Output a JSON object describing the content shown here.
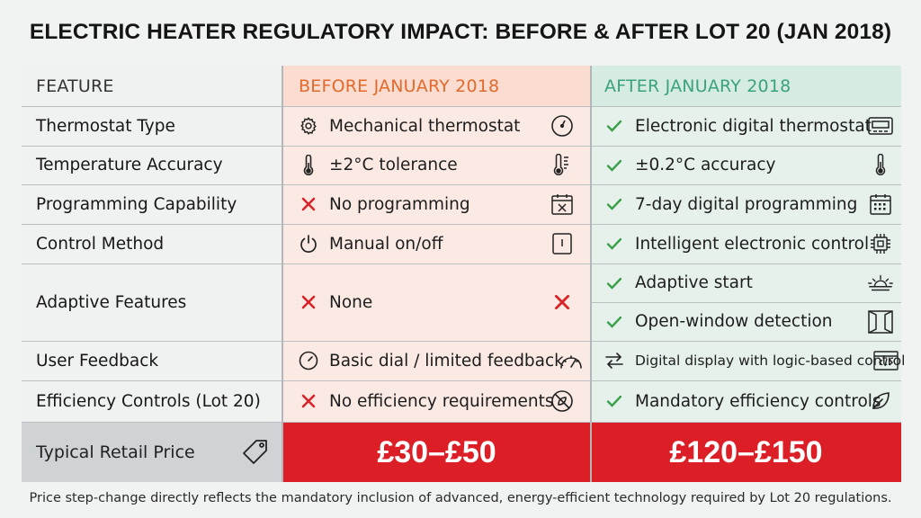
{
  "title": "ELECTRIC HEATER REGULATORY IMPACT: BEFORE & AFTER LOT 20 (JAN 2018)",
  "headers": {
    "feature": "FEATURE",
    "before": "BEFORE JANUARY 2018",
    "after": "AFTER JANUARY 2018"
  },
  "rows": [
    {
      "feature": "Thermostat Type",
      "before": {
        "text": "Mechanical thermostat",
        "lead_icon": "gear-icon",
        "trail_icon": "dial-icon"
      },
      "after": [
        {
          "text": "Electronic digital thermostat",
          "lead_icon": "check-icon",
          "trail_icon": "digital-display-icon"
        }
      ]
    },
    {
      "feature": "Temperature Accuracy",
      "before": {
        "text": "±2°C tolerance",
        "lead_icon": "thermometer-icon",
        "trail_icon": "thermometer-scale-icon"
      },
      "after": [
        {
          "text": "±0.2°C accuracy",
          "lead_icon": "check-icon",
          "trail_icon": "thermometer-icon"
        }
      ]
    },
    {
      "feature": "Programming Capability",
      "before": {
        "text": "No programming",
        "lead_icon": "x-icon",
        "trail_icon": "calendar-x-icon"
      },
      "after": [
        {
          "text": "7-day digital programming",
          "lead_icon": "check-icon",
          "trail_icon": "calendar-grid-icon"
        }
      ]
    },
    {
      "feature": "Control Method",
      "before": {
        "text": "Manual on/off",
        "lead_icon": "power-icon",
        "trail_icon": "switch-icon"
      },
      "after": [
        {
          "text": "Intelligent electronic control",
          "lead_icon": "check-icon",
          "trail_icon": "chip-icon"
        }
      ]
    },
    {
      "feature": "Adaptive Features",
      "before": {
        "text": "None",
        "lead_icon": "x-icon",
        "trail_icon": "x-icon"
      },
      "after": [
        {
          "text": "Adaptive start",
          "lead_icon": "check-icon",
          "trail_icon": "sunrise-icon"
        },
        {
          "text": "Open-window detection",
          "lead_icon": "check-icon",
          "trail_icon": "window-icon"
        }
      ]
    },
    {
      "feature": "User Feedback",
      "before": {
        "text": "Basic dial / limited feedback",
        "lead_icon": "clock-dial-icon",
        "trail_icon": "gauge-icon"
      },
      "after": [
        {
          "text": "Digital display with logic-based control",
          "lead_icon": "swap-arrows-icon",
          "trail_icon": "code-window-icon"
        }
      ]
    },
    {
      "feature": "Efficiency Controls (Lot 20)",
      "before": {
        "text": "No efficiency requirements",
        "lead_icon": "x-icon",
        "trail_icon": "no-symbol-icon"
      },
      "after": [
        {
          "text": "Mandatory efficiency controls",
          "lead_icon": "check-icon",
          "trail_icon": "leaf-icon"
        }
      ]
    }
  ],
  "price_row": {
    "label": "Typical Retail Price",
    "label_icon": "price-tag-icon",
    "before": "£30–£50",
    "after": "£120–£150"
  },
  "footer": "Price step-change directly reflects the mandatory inclusion of advanced, energy-efficient technology required by Lot 20 regulations.",
  "colors": {
    "before_header": "#e26a2c",
    "after_header": "#3aa37e",
    "cross": "#d8232a",
    "check": "#3aa04a",
    "price_bg": "#dc1f26"
  }
}
